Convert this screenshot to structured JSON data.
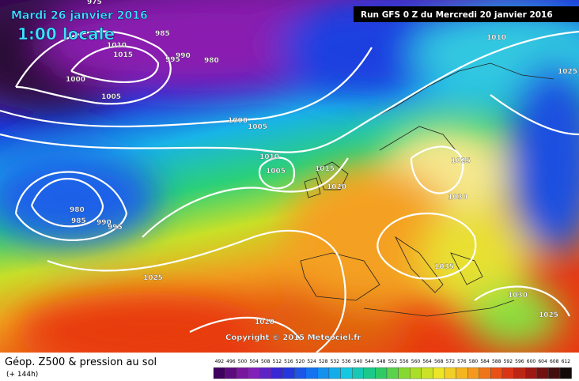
{
  "header": {
    "valid_date": "Mardi 26 janvier 2016",
    "local_time": "1:00 locale",
    "run": "Run GFS 0 Z du Mercredi 20 janvier 2016"
  },
  "copyright": "Copyright © 2015 Meteociel.fr",
  "footer": {
    "title": "Géop. Z500 & pression au sol",
    "lead": "(+ 144h)"
  },
  "scale": {
    "labels": [
      492,
      496,
      500,
      504,
      508,
      512,
      516,
      520,
      524,
      528,
      532,
      536,
      540,
      544,
      548,
      552,
      556,
      560,
      564,
      568,
      572,
      576,
      580,
      584,
      588,
      592,
      596,
      600,
      604,
      608,
      612
    ]
  },
  "isobar_labels": [
    975,
    985,
    1010,
    1015,
    995,
    990,
    980,
    1000,
    1005,
    1000,
    1005,
    1010,
    1005,
    1015,
    1020,
    980,
    985,
    990,
    995,
    1025,
    1025,
    1030,
    1035,
    1030,
    1025,
    1020,
    1010,
    1025
  ]
}
